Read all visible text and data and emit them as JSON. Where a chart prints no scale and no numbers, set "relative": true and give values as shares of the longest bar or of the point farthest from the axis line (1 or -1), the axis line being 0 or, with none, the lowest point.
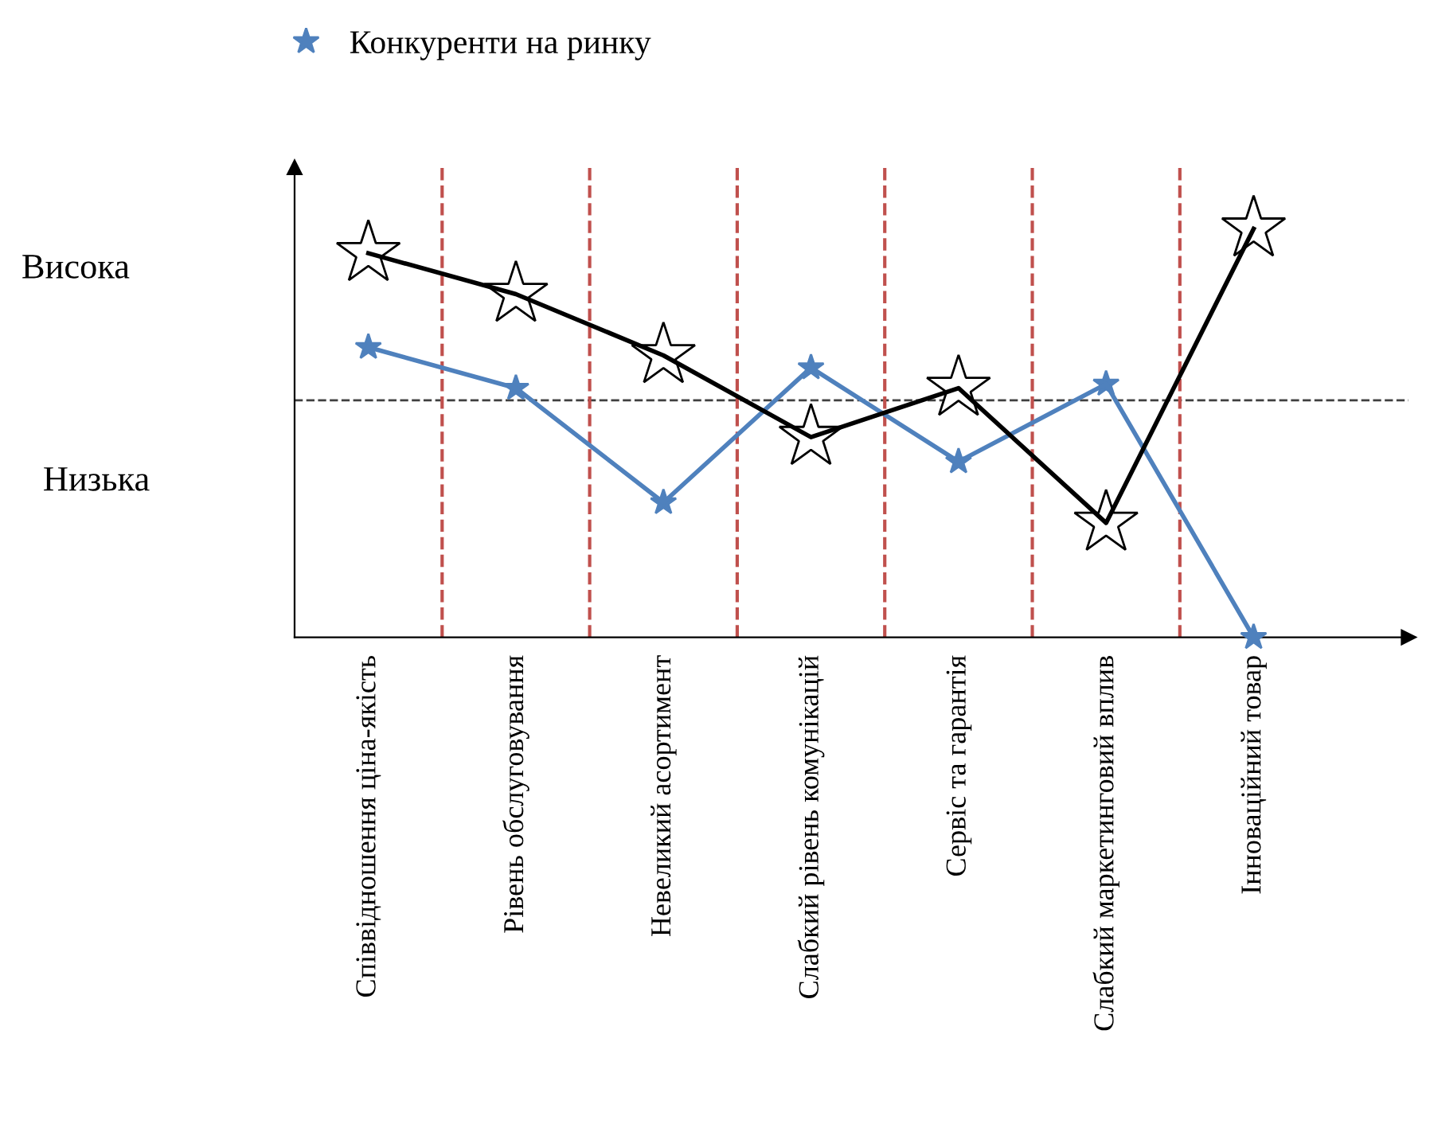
{
  "chart_data": {
    "type": "line",
    "relative": true,
    "categories": [
      "Співвідношення ціна-якість",
      "Рівень обслуговування",
      "Невеликий асортимент",
      "Слабкий рівень комунікацій",
      "Сервіс та гарантія",
      "Слабкий маркетинговий вплив",
      "Інноваційний товар"
    ],
    "series": [
      {
        "name": "Конкуренти на ринку",
        "color": "#4f81bd",
        "values": [
          0.71,
          0.61,
          0.33,
          0.66,
          0.43,
          0.62,
          0
        ]
      },
      {
        "color": "#000000",
        "values": [
          0.94,
          0.84,
          0.69,
          0.49,
          0.61,
          0.28,
          1
        ]
      }
    ],
    "marker": "star",
    "grid": "x",
    "legend": "top left",
    "ref_lines": [
      {
        "axis": "y",
        "value": 0.58,
        "color": "#404040",
        "line_style": "dashed"
      }
    ],
    "annotations": [
      "Висока",
      "Низька"
    ]
  }
}
